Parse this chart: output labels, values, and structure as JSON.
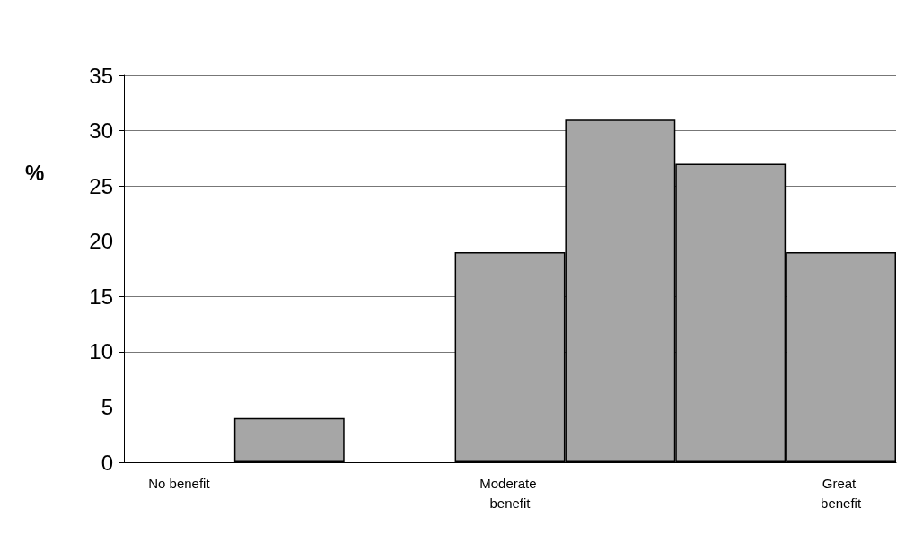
{
  "chart_data": {
    "type": "bar",
    "ylabel": "%",
    "categories": [
      "No benefit",
      null,
      null,
      "Moderate benefit",
      null,
      null,
      "Great benefit"
    ],
    "values": [
      0,
      4,
      0,
      19,
      31,
      27,
      19
    ],
    "color": "#a6a6a6",
    "ylim": [
      0,
      35
    ],
    "yticks": [
      0,
      5,
      10,
      15,
      20,
      25,
      30,
      35
    ],
    "grid": "y"
  }
}
